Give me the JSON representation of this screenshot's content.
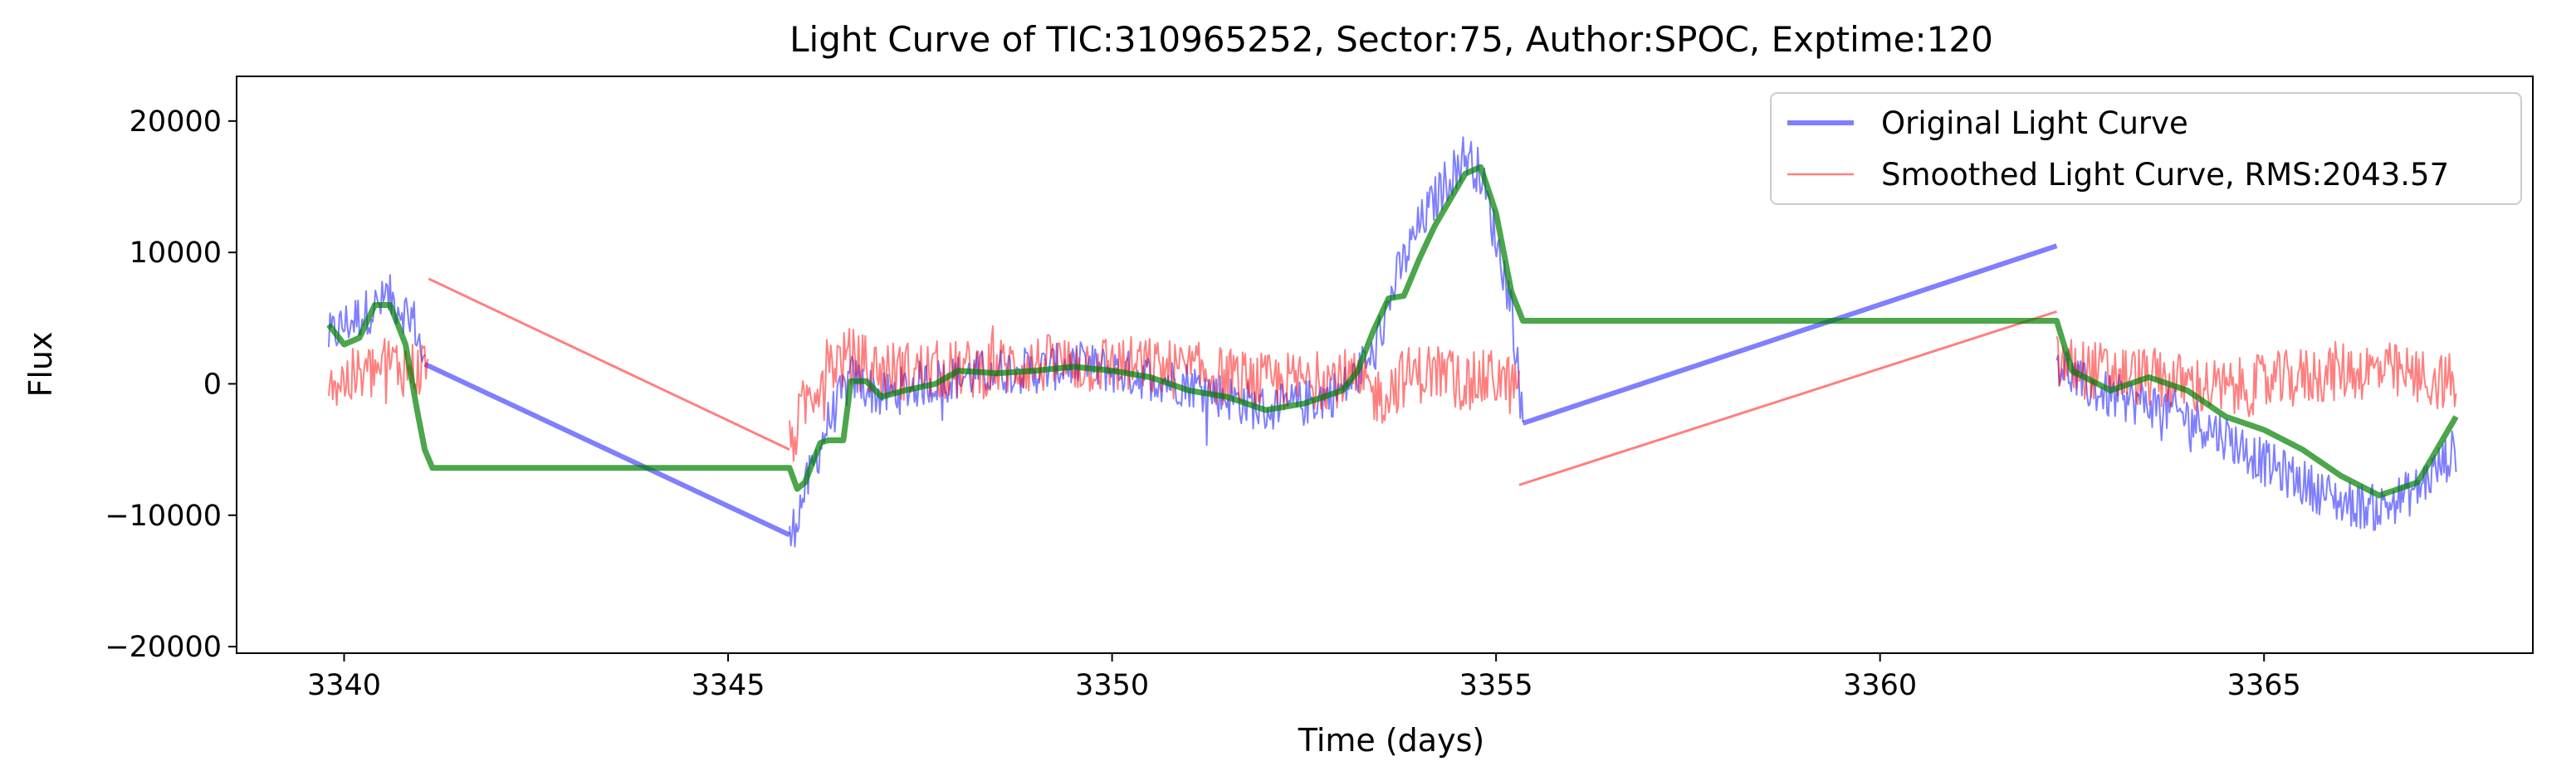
{
  "chart_data": {
    "type": "line",
    "title": "Light Curve of TIC:310965252, Sector:75, Author:SPOC, Exptime:120",
    "xlabel": "Time (days)",
    "ylabel": "Flux",
    "xlim": [
      3338.6,
      3368.5
    ],
    "ylim": [
      -20500,
      23400
    ],
    "x_ticks": [
      3340,
      3345,
      3350,
      3355,
      3360,
      3365
    ],
    "x_tick_labels": [
      "3340",
      "3345",
      "3350",
      "3355",
      "3360",
      "3365"
    ],
    "y_ticks": [
      -20000,
      -10000,
      0,
      10000,
      20000
    ],
    "y_tick_labels": [
      "−20000",
      "−10000",
      "0",
      "10000",
      "20000"
    ],
    "grid": false,
    "legend_position": "top-right",
    "series": [
      {
        "name": "Original Light Curve",
        "color": "#0000ff",
        "opacity": 0.5,
        "legend_line_width": "thick",
        "segments": [
          {
            "x": [
              3339.8,
              3340.0,
              3340.3,
              3340.6,
              3340.9,
              3341.05
            ],
            "y": [
              3500,
              4500,
              5500,
              6500,
              5000,
              1500
            ]
          },
          {
            "x": [
              3345.8,
              3345.95,
              3346.1,
              3346.3,
              3346.6,
              3347.0,
              3347.5,
              3348.0,
              3348.5,
              3349.0,
              3349.5,
              3350.0,
              3350.5,
              3351.0,
              3351.5,
              3352.0,
              3352.5,
              3353.0,
              3353.4,
              3353.7,
              3354.0,
              3354.3,
              3354.6,
              3354.8,
              3355.0,
              3355.2,
              3355.35
            ],
            "y": [
              -12000,
              -9000,
              -6500,
              -3000,
              500,
              -1000,
              0,
              500,
              1000,
              1000,
              1500,
              1000,
              500,
              0,
              -1000,
              -2000,
              -1500,
              -500,
              2000,
              8000,
              12000,
              15000,
              17500,
              16000,
              11000,
              6000,
              -3000
            ]
          },
          {
            "x": [
              3362.3,
              3362.6,
              3363.0,
              3363.5,
              3364.0,
              3364.5,
              3365.0,
              3365.5,
              3366.0,
              3366.5,
              3367.0,
              3367.5
            ],
            "y": [
              2000,
              0,
              -1000,
              -1500,
              -2500,
              -4000,
              -6000,
              -7500,
              -9000,
              -9500,
              -8000,
              -5000
            ]
          }
        ],
        "bridges": [
          {
            "x": [
              3341.05,
              3345.8
            ],
            "y": [
              1500,
              -11500
            ]
          },
          {
            "x": [
              3355.35,
              3362.3
            ],
            "y": [
              -3000,
              10500
            ]
          }
        ],
        "noise_amplitude": 1800
      },
      {
        "name": "Smoothed Light Curve, RMS:2043.57",
        "color": "#ff0000",
        "opacity": 0.5,
        "legend_line_width": "thin",
        "segments": [
          {
            "x": [
              3339.8,
              3340.2,
              3340.6,
              3341.0,
              3341.1
            ],
            "y": [
              0,
              500,
              1500,
              1000,
              2500
            ]
          },
          {
            "x": [
              3345.8,
              3346.0,
              3346.3,
              3346.6,
              3347.0,
              3348.0,
              3349.0,
              3350.0,
              3351.0,
              3352.0,
              3353.0,
              3353.5,
              3353.8,
              3354.2,
              3354.6,
              3355.0,
              3355.3
            ],
            "y": [
              -5000,
              -1500,
              1500,
              2000,
              1000,
              1000,
              1500,
              1500,
              1000,
              0,
              500,
              -1000,
              500,
              1000,
              0,
              500,
              -500
            ]
          },
          {
            "x": [
              3362.3,
              3362.8,
              3363.5,
              3364.0,
              3364.5,
              3365.0,
              3365.5,
              3366.0,
              3366.5,
              3367.0,
              3367.5
            ],
            "y": [
              1500,
              1000,
              500,
              0,
              -500,
              0,
              500,
              1000,
              1000,
              500,
              0
            ]
          }
        ],
        "bridges": [
          {
            "x": [
              3341.1,
              3345.8
            ],
            "y": [
              8000,
              -5000
            ]
          },
          {
            "x": [
              3355.3,
              3362.3
            ],
            "y": [
              -7700,
              5500
            ]
          }
        ],
        "noise_amplitude": 2300
      },
      {
        "name": "",
        "color": "#008000",
        "opacity": 0.7,
        "legend_line_width": "thick",
        "segments": [
          {
            "x": [
              3339.8,
              3340.0,
              3340.2,
              3340.4,
              3340.6,
              3340.8,
              3340.95,
              3341.05,
              3341.15,
              3345.8,
              3345.9,
              3346.0,
              3346.2,
              3346.3,
              3346.5,
              3346.6,
              3346.8,
              3347.0,
              3347.3,
              3347.7,
              3348.0,
              3348.5,
              3349.0,
              3349.5,
              3350.0,
              3350.5,
              3351.0,
              3351.5,
              3352.0,
              3352.5,
              3353.0,
              3353.2,
              3353.4,
              3353.6,
              3353.8,
              3354.0,
              3354.2,
              3354.4,
              3354.6,
              3354.8,
              3355.0,
              3355.2,
              3355.35,
              3362.3,
              3362.5,
              3363.0,
              3363.5,
              3364.0,
              3364.5,
              3365.0,
              3365.5,
              3366.0,
              3366.5,
              3367.0,
              3367.5
            ],
            "y": [
              4500,
              3000,
              3500,
              6000,
              6000,
              3000,
              -2000,
              -5000,
              -6400,
              -6400,
              -8000,
              -7500,
              -4500,
              -4300,
              -4300,
              200,
              200,
              -1000,
              -500,
              0,
              1000,
              800,
              1000,
              1300,
              1000,
              500,
              -500,
              -1000,
              -2000,
              -1500,
              -500,
              1000,
              4000,
              6500,
              6700,
              9500,
              12000,
              14000,
              16000,
              16500,
              13000,
              7000,
              4800,
              4800,
              1000,
              -500,
              500,
              -500,
              -2500,
              -3500,
              -5000,
              -7000,
              -8500,
              -7500,
              -2500
            ]
          }
        ],
        "bridges": [],
        "noise_amplitude": 0
      }
    ]
  }
}
